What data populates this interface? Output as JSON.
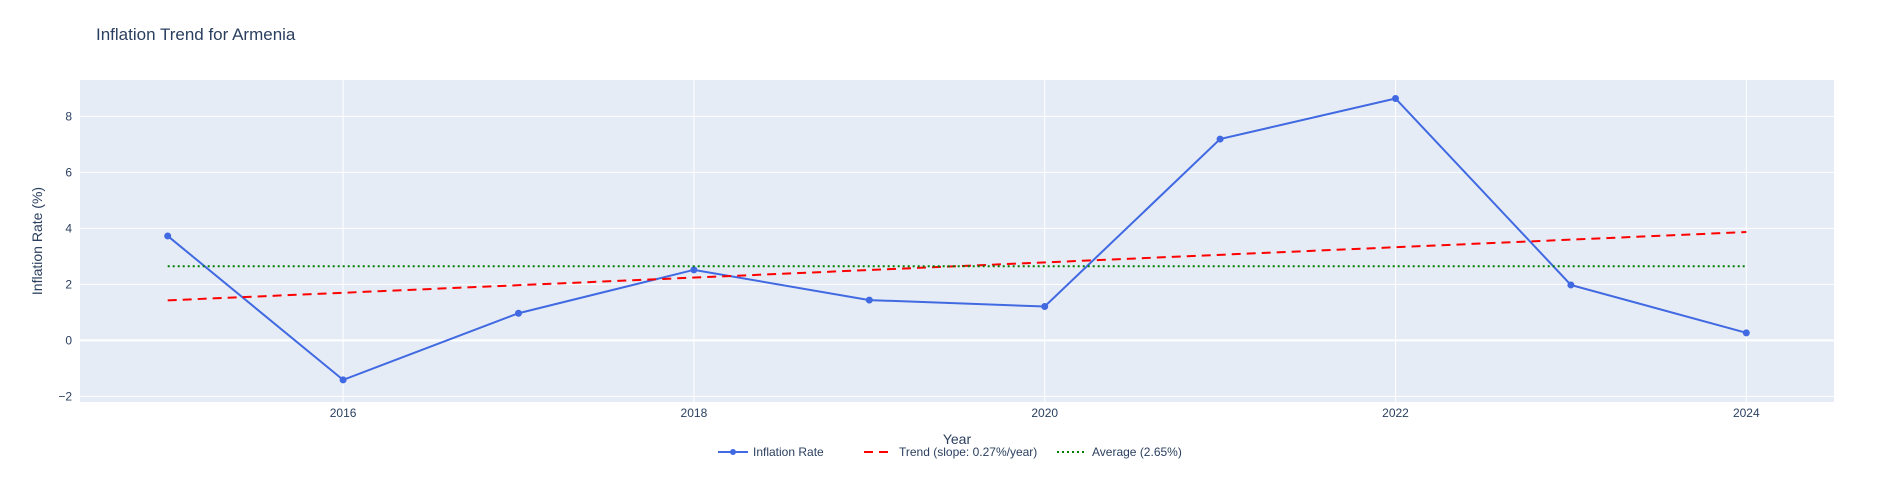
{
  "chart_data": {
    "type": "line",
    "title": "Inflation Trend for Armenia",
    "xlabel": "Year",
    "ylabel": "Inflation Rate (%)",
    "xlim": [
      2014.5,
      2024.5
    ],
    "ylim": [
      -2.2,
      9.3
    ],
    "x_ticks": [
      2016,
      2018,
      2020,
      2022,
      2024
    ],
    "y_ticks": [
      -2,
      0,
      2,
      4,
      6,
      8
    ],
    "grid": true,
    "legend_position": "bottom-center",
    "series": [
      {
        "name": "Inflation Rate",
        "style": "lines+markers",
        "color": "#4169e1",
        "x": [
          2015,
          2016,
          2017,
          2018,
          2019,
          2020,
          2021,
          2022,
          2023,
          2024
        ],
        "y": [
          3.73,
          -1.41,
          0.97,
          2.52,
          1.44,
          1.21,
          7.19,
          8.64,
          1.98,
          0.27
        ]
      },
      {
        "name": "Trend (slope: 0.27%/year)",
        "style": "dash",
        "color": "#ff0000",
        "x": [
          2015,
          2024
        ],
        "y": [
          1.43,
          3.87
        ]
      },
      {
        "name": "Average (2.65%)",
        "style": "dot",
        "color": "#008000",
        "x": [
          2015,
          2024
        ],
        "y": [
          2.65,
          2.65
        ]
      }
    ]
  }
}
